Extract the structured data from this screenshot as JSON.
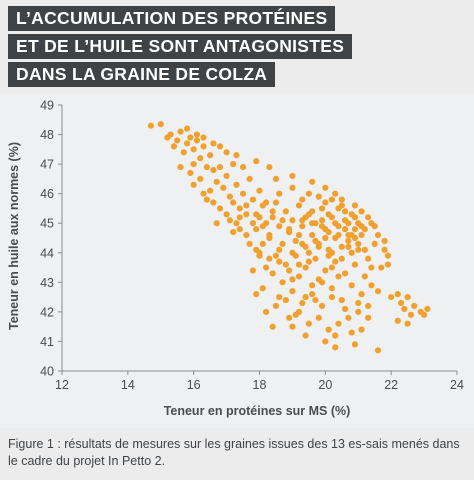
{
  "title": {
    "line1": "L’ACCUMULATION DES PROTÉINES",
    "line2": "ET DE L’HUILE SONT ANTAGONISTES",
    "line3": "DANS LA GRAINE DE COLZA"
  },
  "caption": "Figure 1 : résultats de mesures sur les graines issues des 13 es-sais menés dans le cadre du projet In Petto 2.",
  "colors": {
    "point": "#f0a02e",
    "title_bg": "#3f4346",
    "panel_bg": "#eef0f1"
  },
  "chart_data": {
    "type": "scatter",
    "xlabel": "Teneur en protéines sur MS (%)",
    "ylabel": "Teneur en huile aux normes (%)",
    "xlim": [
      12,
      24
    ],
    "ylim": [
      40,
      49
    ],
    "xticks": [
      12,
      14,
      16,
      18,
      20,
      22,
      24
    ],
    "yticks": [
      40,
      41,
      42,
      43,
      44,
      45,
      46,
      47,
      48,
      49
    ],
    "grid": false,
    "points": [
      [
        14.7,
        48.3
      ],
      [
        15.0,
        48.35
      ],
      [
        15.3,
        48.0
      ],
      [
        15.5,
        47.8
      ],
      [
        15.6,
        48.1
      ],
      [
        15.8,
        47.7
      ],
      [
        15.9,
        47.9
      ],
      [
        16.0,
        47.5
      ],
      [
        16.1,
        47.8
      ],
      [
        15.7,
        47.4
      ],
      [
        15.4,
        47.6
      ],
      [
        16.2,
        47.2
      ],
      [
        16.3,
        47.6
      ],
      [
        16.0,
        47.0
      ],
      [
        15.9,
        46.7
      ],
      [
        16.4,
        46.9
      ],
      [
        16.5,
        47.3
      ],
      [
        16.6,
        46.8
      ],
      [
        16.2,
        46.5
      ],
      [
        16.7,
        46.4
      ],
      [
        16.8,
        46.9
      ],
      [
        16.9,
        46.2
      ],
      [
        17.0,
        46.6
      ],
      [
        16.5,
        46.1
      ],
      [
        16.4,
        45.8
      ],
      [
        17.1,
        45.9
      ],
      [
        17.3,
        46.3
      ],
      [
        17.2,
        47.0
      ],
      [
        17.5,
        46.0
      ],
      [
        17.6,
        45.6
      ],
      [
        17.4,
        45.2
      ],
      [
        17.8,
        45.8
      ],
      [
        17.7,
        46.5
      ],
      [
        17.9,
        45.3
      ],
      [
        18.0,
        46.1
      ],
      [
        18.1,
        45.6
      ],
      [
        18.2,
        45.0
      ],
      [
        17.9,
        44.8
      ],
      [
        17.6,
        44.6
      ],
      [
        17.3,
        45.0
      ],
      [
        17.0,
        45.3
      ],
      [
        16.8,
        45.5
      ],
      [
        16.7,
        45.0
      ],
      [
        17.2,
        44.7
      ],
      [
        18.3,
        44.5
      ],
      [
        18.4,
        45.2
      ],
      [
        18.5,
        45.7
      ],
      [
        18.6,
        44.9
      ],
      [
        18.7,
        44.3
      ],
      [
        18.8,
        45.4
      ],
      [
        18.9,
        44.7
      ],
      [
        19.0,
        45.1
      ],
      [
        19.1,
        44.4
      ],
      [
        19.2,
        45.6
      ],
      [
        19.3,
        44.9
      ],
      [
        19.4,
        44.2
      ],
      [
        19.5,
        45.3
      ],
      [
        19.6,
        44.6
      ],
      [
        19.7,
        45.0
      ],
      [
        19.8,
        44.3
      ],
      [
        19.9,
        45.5
      ],
      [
        20.0,
        44.8
      ],
      [
        20.1,
        44.1
      ],
      [
        20.2,
        45.2
      ],
      [
        20.3,
        44.5
      ],
      [
        20.4,
        44.9
      ],
      [
        20.5,
        44.2
      ],
      [
        20.6,
        45.1
      ],
      [
        20.7,
        44.6
      ],
      [
        20.8,
        44.0
      ],
      [
        20.9,
        44.8
      ],
      [
        21.0,
        44.3
      ],
      [
        21.1,
        44.6
      ],
      [
        19.5,
        46.0
      ],
      [
        19.8,
        45.9
      ],
      [
        20.0,
        45.7
      ],
      [
        20.2,
        45.8
      ],
      [
        19.3,
        45.8
      ],
      [
        19.0,
        46.2
      ],
      [
        18.6,
        46.0
      ],
      [
        20.5,
        45.6
      ],
      [
        20.8,
        45.3
      ],
      [
        21.0,
        45.0
      ],
      [
        21.2,
        44.1
      ],
      [
        21.3,
        43.8
      ],
      [
        21.4,
        43.5
      ],
      [
        21.5,
        44.3
      ],
      [
        21.2,
        43.2
      ],
      [
        20.9,
        43.6
      ],
      [
        20.6,
        43.3
      ],
      [
        20.3,
        43.7
      ],
      [
        20.0,
        43.4
      ],
      [
        19.7,
        43.8
      ],
      [
        19.4,
        43.5
      ],
      [
        19.1,
        43.9
      ],
      [
        18.8,
        43.6
      ],
      [
        18.5,
        43.9
      ],
      [
        18.2,
        43.5
      ],
      [
        18.0,
        43.9
      ],
      [
        17.8,
        43.4
      ],
      [
        17.9,
        44.1
      ],
      [
        18.1,
        44.3
      ],
      [
        18.6,
        44.1
      ],
      [
        19.0,
        44.0
      ],
      [
        19.5,
        43.7
      ],
      [
        20.1,
        43.9
      ],
      [
        20.4,
        43.2
      ],
      [
        19.8,
        43.1
      ],
      [
        19.2,
        43.2
      ],
      [
        18.7,
        43.0
      ],
      [
        18.4,
        43.3
      ],
      [
        18.1,
        42.8
      ],
      [
        17.9,
        42.6
      ],
      [
        18.6,
        42.5
      ],
      [
        19.0,
        42.7
      ],
      [
        19.3,
        42.3
      ],
      [
        19.6,
        42.6
      ],
      [
        19.9,
        42.2
      ],
      [
        20.2,
        42.8
      ],
      [
        20.5,
        42.4
      ],
      [
        20.8,
        42.9
      ],
      [
        21.1,
        42.6
      ],
      [
        21.4,
        42.9
      ],
      [
        21.6,
        42.7
      ],
      [
        21.3,
        42.2
      ],
      [
        21.0,
        42.0
      ],
      [
        20.7,
        41.8
      ],
      [
        20.4,
        41.6
      ],
      [
        20.1,
        41.4
      ],
      [
        19.8,
        41.8
      ],
      [
        19.5,
        41.6
      ],
      [
        19.2,
        42.0
      ],
      [
        18.9,
        41.8
      ],
      [
        20.0,
        41.0
      ],
      [
        20.3,
        41.2
      ],
      [
        20.8,
        41.3
      ],
      [
        21.6,
        40.7
      ],
      [
        21.1,
        41.4
      ],
      [
        22.0,
        42.5
      ],
      [
        22.2,
        42.6
      ],
      [
        22.3,
        42.3
      ],
      [
        22.5,
        42.5
      ],
      [
        22.4,
        42.1
      ],
      [
        22.6,
        41.9
      ],
      [
        22.2,
        41.7
      ],
      [
        22.7,
        42.2
      ],
      [
        22.9,
        42.0
      ],
      [
        23.0,
        41.9
      ],
      [
        22.5,
        41.6
      ],
      [
        23.1,
        42.1
      ],
      [
        21.7,
        43.5
      ],
      [
        21.9,
        43.6
      ],
      [
        21.8,
        44.4
      ],
      [
        21.5,
        44.9
      ],
      [
        21.3,
        45.2
      ],
      [
        20.9,
        45.6
      ],
      [
        21.1,
        44.9
      ],
      [
        20.3,
        46.0
      ],
      [
        20.0,
        46.2
      ],
      [
        19.6,
        46.4
      ],
      [
        19.0,
        46.6
      ],
      [
        18.5,
        46.5
      ],
      [
        18.3,
        46.9
      ],
      [
        17.9,
        47.1
      ],
      [
        17.5,
        46.9
      ],
      [
        17.3,
        47.3
      ],
      [
        17.0,
        47.4
      ],
      [
        16.8,
        47.6
      ],
      [
        16.6,
        47.7
      ],
      [
        16.3,
        47.9
      ],
      [
        16.1,
        48.0
      ],
      [
        15.8,
        48.2
      ],
      [
        15.2,
        47.9
      ],
      [
        15.6,
        46.9
      ],
      [
        16.0,
        46.3
      ],
      [
        16.3,
        46.0
      ],
      [
        16.6,
        45.7
      ],
      [
        17.1,
        45.1
      ],
      [
        17.4,
        44.8
      ],
      [
        17.7,
        44.3
      ],
      [
        18.0,
        44.0
      ],
      [
        18.3,
        43.8
      ],
      [
        18.5,
        42.2
      ],
      [
        18.2,
        42.0
      ],
      [
        18.8,
        42.4
      ],
      [
        19.1,
        41.9
      ],
      [
        19.4,
        41.2
      ],
      [
        19.6,
        42.9
      ],
      [
        19.9,
        43.0
      ],
      [
        20.2,
        43.5
      ],
      [
        20.5,
        43.8
      ],
      [
        20.7,
        44.2
      ],
      [
        20.9,
        44.5
      ],
      [
        21.2,
        44.8
      ],
      [
        21.4,
        45.0
      ],
      [
        21.6,
        44.6
      ],
      [
        21.8,
        44.1
      ],
      [
        21.9,
        43.9
      ],
      [
        19.4,
        45.2
      ],
      [
        19.6,
        45.4
      ],
      [
        19.9,
        45.1
      ],
      [
        20.1,
        45.3
      ],
      [
        20.3,
        45.0
      ],
      [
        20.6,
        44.8
      ],
      [
        20.8,
        44.6
      ],
      [
        19.2,
        44.6
      ],
      [
        18.9,
        44.8
      ],
      [
        18.7,
        45.1
      ],
      [
        18.4,
        45.4
      ],
      [
        18.2,
        45.7
      ],
      [
        18.0,
        45.2
      ],
      [
        17.8,
        45.0
      ],
      [
        17.6,
        45.3
      ],
      [
        17.4,
        45.5
      ],
      [
        17.2,
        45.7
      ],
      [
        19.7,
        44.4
      ],
      [
        20.0,
        44.5
      ],
      [
        20.4,
        44.6
      ],
      [
        20.7,
        44.4
      ],
      [
        21.0,
        44.1
      ],
      [
        19.3,
        44.3
      ],
      [
        19.5,
        44.0
      ],
      [
        19.8,
        44.2
      ],
      [
        20.2,
        44.0
      ],
      [
        18.6,
        43.7
      ],
      [
        18.9,
        43.4
      ],
      [
        19.2,
        43.6
      ],
      [
        19.0,
        43.1
      ],
      [
        18.3,
        44.6
      ],
      [
        18.1,
        44.9
      ],
      [
        20.6,
        45.4
      ],
      [
        20.4,
        45.5
      ],
      [
        20.1,
        44.7
      ],
      [
        19.9,
        44.9
      ],
      [
        19.6,
        45.0
      ],
      [
        19.3,
        45.1
      ],
      [
        20.7,
        45.0
      ],
      [
        20.9,
        45.2
      ],
      [
        21.1,
        45.4
      ],
      [
        20.5,
        45.8
      ],
      [
        20.2,
        42.5
      ],
      [
        20.6,
        42.1
      ],
      [
        21.0,
        42.3
      ],
      [
        21.3,
        41.8
      ],
      [
        19.7,
        42.4
      ],
      [
        19.4,
        42.5
      ],
      [
        18.4,
        41.5
      ],
      [
        19.0,
        41.5
      ],
      [
        20.3,
        40.8
      ],
      [
        20.9,
        40.9
      ]
    ]
  }
}
